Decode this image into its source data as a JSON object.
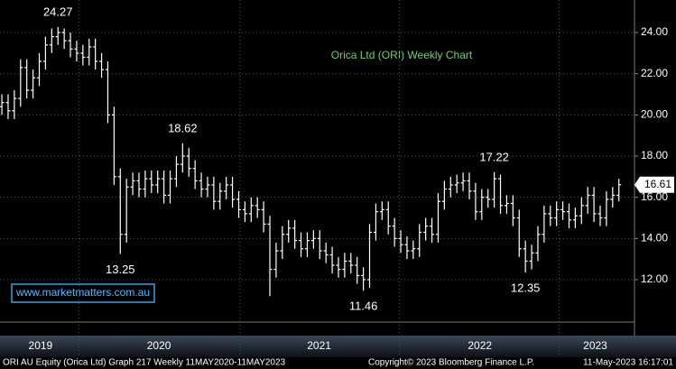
{
  "chart_data": {
    "type": "ohlc",
    "title": "Orica Ltd (ORI) Weekly Chart",
    "watermark": "www.marketmatters.com.au",
    "footer": {
      "left": "ORI AU Equity (Orica Ltd) Graph 217  Weekly 11MAY2020-11MAY2023",
      "center": "Copyright© 2023 Bloomberg Finance L.P.",
      "right": "11-May-2023 16:17:01"
    },
    "color": "#ffffff",
    "grid": true,
    "ylim": [
      9.94,
      25.58
    ],
    "yticks": [
      {
        "value": 12,
        "label": "12.00"
      },
      {
        "value": 14,
        "label": "14.00"
      },
      {
        "value": 16,
        "label": "16.00"
      },
      {
        "value": 18,
        "label": "18.00"
      },
      {
        "value": 20,
        "label": "20.00"
      },
      {
        "value": 22,
        "label": "22.00"
      },
      {
        "value": 24,
        "label": "24.00"
      }
    ],
    "xlim": [
      -0.3,
      101.5
    ],
    "xticks": [
      {
        "value": 6.2,
        "label": "2019"
      },
      {
        "value": 25.2,
        "label": "2020"
      },
      {
        "value": 50.9,
        "label": "2021"
      },
      {
        "value": 76.7,
        "label": "2022"
      },
      {
        "value": 95.2,
        "label": "2023"
      }
    ],
    "xgrid": [
      12.4,
      38.2,
      63.8,
      89.4
    ],
    "annotated_highs": [
      9,
      29,
      79
    ],
    "annotated_lows": [
      19,
      58,
      84
    ],
    "open": [
      20.4,
      20.6,
      20.2,
      20.8,
      22.3,
      21.2,
      21.8,
      22.6,
      23.4,
      23.8,
      24.0,
      23.6,
      23.2,
      23.0,
      22.8,
      23.3,
      22.6,
      22.2,
      20.0,
      17.0,
      14.2,
      16.5,
      16.8,
      16.4,
      16.9,
      16.6,
      16.9,
      16.1,
      16.9,
      17.6,
      18.0,
      17.4,
      16.8,
      16.4,
      16.6,
      15.8,
      16.3,
      16.6,
      15.9,
      15.4,
      15.2,
      15.6,
      15.4,
      14.7,
      12.5,
      13.4,
      14.2,
      14.5,
      13.9,
      13.5,
      13.9,
      14.0,
      13.4,
      13.2,
      12.7,
      12.5,
      12.9,
      12.7,
      12.2,
      12.0,
      14.3,
      15.3,
      15.4,
      14.6,
      14.0,
      13.7,
      13.4,
      13.5,
      14.3,
      14.6,
      14.2,
      15.8,
      16.4,
      16.6,
      16.7,
      16.8,
      16.3,
      15.3,
      16.0,
      15.9,
      16.9,
      15.6,
      15.7,
      15.0,
      13.5,
      12.9,
      13.3,
      14.2,
      15.2,
      15.0,
      15.4,
      15.3,
      14.9,
      15.1,
      15.6,
      16.1,
      15.2,
      15.0,
      15.9,
      16.1
    ],
    "high": [
      21.0,
      21.0,
      21.2,
      22.7,
      22.7,
      22.2,
      23.0,
      23.8,
      24.2,
      24.27,
      24.2,
      24.0,
      23.6,
      23.4,
      23.7,
      23.7,
      23.0,
      22.6,
      20.4,
      17.4,
      16.9,
      17.2,
      17.2,
      17.3,
      17.3,
      17.3,
      17.3,
      17.3,
      18.0,
      18.62,
      18.4,
      17.8,
      17.2,
      17.0,
      17.0,
      16.7,
      17.0,
      17.0,
      16.3,
      15.8,
      16.0,
      16.0,
      15.8,
      15.1,
      13.8,
      14.6,
      14.9,
      14.9,
      14.3,
      14.3,
      14.4,
      14.4,
      13.8,
      13.6,
      13.1,
      13.3,
      13.3,
      13.1,
      12.6,
      14.7,
      15.7,
      15.8,
      15.8,
      15.0,
      14.4,
      14.1,
      13.9,
      14.7,
      15.0,
      15.0,
      16.2,
      16.8,
      17.0,
      17.1,
      17.2,
      17.2,
      16.7,
      16.4,
      16.4,
      17.22,
      17.1,
      16.1,
      16.1,
      15.4,
      13.9,
      13.7,
      14.6,
      15.6,
      15.6,
      15.8,
      15.8,
      15.7,
      15.5,
      16.0,
      16.5,
      16.5,
      15.6,
      16.3,
      16.5,
      16.9
    ],
    "low": [
      20.0,
      19.8,
      19.8,
      20.4,
      20.8,
      20.8,
      21.4,
      22.2,
      23.0,
      23.4,
      23.2,
      22.8,
      22.6,
      22.4,
      22.4,
      22.2,
      21.8,
      19.6,
      16.6,
      13.25,
      13.8,
      16.1,
      16.0,
      16.0,
      16.2,
      16.2,
      15.7,
      15.7,
      16.5,
      17.2,
      17.0,
      16.4,
      16.0,
      16.0,
      15.4,
      15.4,
      15.9,
      15.5,
      15.0,
      14.8,
      14.8,
      15.0,
      14.3,
      11.2,
      12.1,
      13.0,
      13.8,
      13.5,
      13.1,
      13.1,
      13.5,
      13.0,
      12.8,
      12.3,
      12.1,
      12.1,
      12.3,
      11.8,
      11.46,
      11.6,
      13.9,
      14.9,
      14.2,
      13.6,
      13.3,
      13.0,
      13.0,
      13.1,
      13.9,
      13.8,
      13.8,
      15.4,
      16.0,
      16.2,
      16.3,
      15.9,
      14.9,
      14.9,
      15.5,
      15.5,
      15.2,
      15.2,
      14.6,
      13.1,
      12.35,
      12.5,
      12.9,
      13.8,
      14.6,
      14.6,
      14.9,
      14.5,
      14.5,
      14.7,
      15.2,
      14.8,
      14.6,
      14.6,
      15.5,
      15.8
    ],
    "close": [
      20.6,
      20.2,
      20.8,
      22.3,
      21.2,
      21.8,
      22.6,
      23.4,
      23.8,
      24.0,
      23.6,
      23.2,
      23.0,
      22.8,
      23.3,
      22.6,
      22.2,
      20.0,
      17.0,
      14.2,
      16.5,
      16.8,
      16.4,
      16.9,
      16.6,
      16.9,
      16.1,
      16.9,
      17.6,
      18.0,
      17.4,
      16.8,
      16.4,
      16.6,
      15.8,
      16.3,
      16.6,
      15.9,
      15.4,
      15.2,
      15.6,
      15.4,
      14.7,
      12.5,
      13.4,
      14.2,
      14.5,
      13.9,
      13.5,
      13.9,
      14.0,
      13.4,
      13.2,
      12.7,
      12.5,
      12.9,
      12.7,
      12.2,
      12.0,
      14.3,
      15.3,
      15.4,
      14.6,
      14.0,
      13.7,
      13.4,
      13.5,
      14.3,
      14.6,
      14.2,
      15.8,
      16.4,
      16.6,
      16.7,
      16.8,
      16.3,
      15.3,
      16.0,
      15.9,
      16.9,
      15.6,
      15.7,
      15.0,
      13.5,
      12.9,
      13.3,
      14.2,
      15.2,
      15.0,
      15.4,
      15.3,
      14.9,
      15.1,
      15.6,
      16.1,
      15.2,
      15.0,
      15.9,
      16.1,
      16.61
    ]
  }
}
